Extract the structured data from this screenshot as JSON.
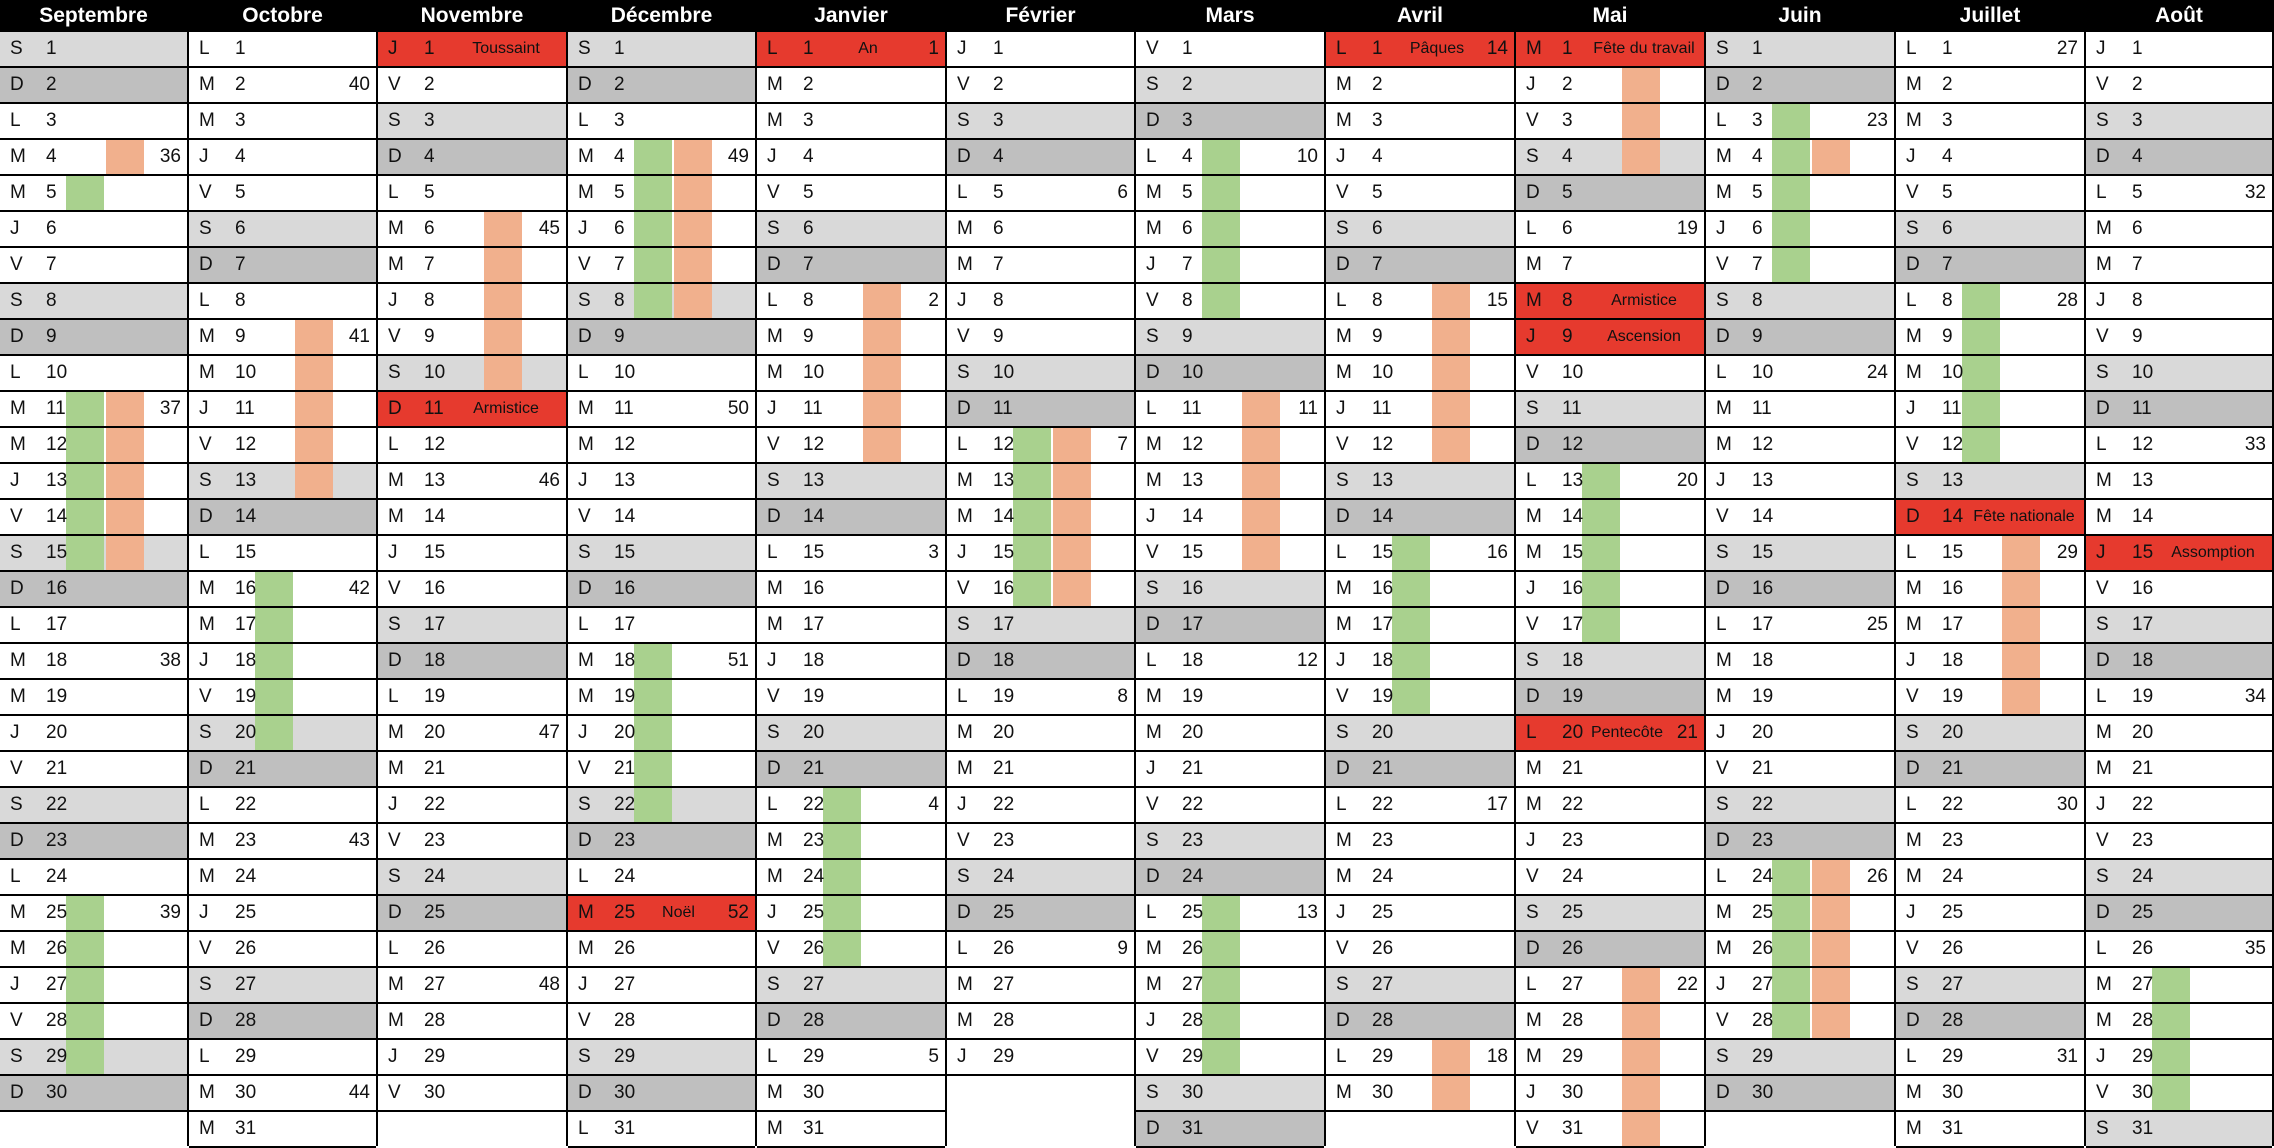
{
  "colors": {
    "header_bg": "#000000",
    "header_text": "#ffffff",
    "saturday": "#d9d9d9",
    "sunday": "#bfbfbf",
    "holiday": "#e63a2e",
    "bar_green": "#a9d18e",
    "bar_orange": "#f1b08d"
  },
  "months": [
    {
      "name": "Septembre",
      "start": 5,
      "length": 30,
      "weeks": {
        "4": 36,
        "11": 37,
        "18": 38,
        "25": 39
      },
      "holidays": [],
      "green": [
        5,
        11,
        12,
        13,
        14,
        15,
        25,
        26,
        27,
        28,
        29
      ],
      "orange": [
        4,
        11,
        12,
        13,
        14,
        15
      ]
    },
    {
      "name": "Octobre",
      "start": 0,
      "length": 31,
      "weeks": {
        "2": 40,
        "9": 41,
        "16": 42,
        "23": 43,
        "30": 44
      },
      "holidays": [],
      "green": [
        16,
        17,
        18,
        19,
        20
      ],
      "orange": [
        9,
        10,
        11,
        12,
        13
      ]
    },
    {
      "name": "Novembre",
      "start": 3,
      "length": 30,
      "weeks": {
        "6": 45,
        "13": 46,
        "20": 47,
        "27": 48
      },
      "holidays": [
        {
          "day": 1,
          "label": "Toussaint"
        },
        {
          "day": 11,
          "label": "Armistice"
        }
      ],
      "green": [],
      "orange": [
        6,
        7,
        8,
        9,
        10
      ]
    },
    {
      "name": "Décembre",
      "start": 5,
      "length": 31,
      "weeks": {
        "4": 49,
        "11": 50,
        "18": 51,
        "25": 52
      },
      "holidays": [
        {
          "day": 25,
          "label": "Noël"
        }
      ],
      "green": [
        4,
        5,
        6,
        7,
        8,
        18,
        19,
        20,
        21,
        22
      ],
      "orange": [
        4,
        5,
        6,
        7,
        8
      ]
    },
    {
      "name": "Janvier",
      "start": 0,
      "length": 31,
      "weeks": {
        "1": 1,
        "8": 2,
        "15": 3,
        "22": 4,
        "29": 5
      },
      "holidays": [
        {
          "day": 1,
          "label": "An"
        }
      ],
      "green": [
        22,
        23,
        24,
        25,
        26
      ],
      "orange": [
        8,
        9,
        10,
        11,
        12
      ]
    },
    {
      "name": "Février",
      "start": 3,
      "length": 29,
      "weeks": {
        "5": 6,
        "12": 7,
        "19": 8,
        "26": 9
      },
      "holidays": [],
      "green": [
        12,
        13,
        14,
        15,
        16
      ],
      "orange": [
        12,
        13,
        14,
        15,
        16
      ]
    },
    {
      "name": "Mars",
      "start": 4,
      "length": 31,
      "weeks": {
        "4": 10,
        "11": 11,
        "18": 12,
        "25": 13
      },
      "holidays": [],
      "green": [
        4,
        5,
        6,
        7,
        8,
        25,
        26,
        27,
        28,
        29
      ],
      "orange": [
        11,
        12,
        13,
        14,
        15
      ]
    },
    {
      "name": "Avril",
      "start": 0,
      "length": 30,
      "weeks": {
        "1": 14,
        "8": 15,
        "15": 16,
        "22": 17,
        "29": 18
      },
      "holidays": [
        {
          "day": 1,
          "label": "Pâques"
        }
      ],
      "green": [
        15,
        16,
        17,
        18,
        19
      ],
      "orange": [
        8,
        9,
        10,
        11,
        12,
        29,
        30
      ]
    },
    {
      "name": "Mai",
      "start": 2,
      "length": 31,
      "weeks": {
        "6": 19,
        "13": 20,
        "20": 21,
        "27": 22
      },
      "holidays": [
        {
          "day": 1,
          "label": "Fête du travail"
        },
        {
          "day": 8,
          "label": "Armistice"
        },
        {
          "day": 9,
          "label": "Ascension"
        },
        {
          "day": 20,
          "label": "Pentecôte"
        }
      ],
      "green": [
        13,
        14,
        15,
        16,
        17
      ],
      "orange": [
        2,
        3,
        4,
        27,
        28,
        29,
        30,
        31
      ]
    },
    {
      "name": "Juin",
      "start": 5,
      "length": 30,
      "weeks": {
        "3": 23,
        "10": 24,
        "17": 25,
        "24": 26
      },
      "holidays": [],
      "green": [
        3,
        4,
        5,
        6,
        7,
        24,
        25,
        26,
        27,
        28
      ],
      "orange": [
        4,
        24,
        25,
        26,
        27,
        28
      ]
    },
    {
      "name": "Juillet",
      "start": 0,
      "length": 31,
      "weeks": {
        "1": 27,
        "8": 28,
        "15": 29,
        "22": 30,
        "29": 31
      },
      "holidays": [
        {
          "day": 14,
          "label": "Fête nationale"
        }
      ],
      "green": [
        8,
        9,
        10,
        11,
        12
      ],
      "orange": [
        15,
        16,
        17,
        18,
        19
      ]
    },
    {
      "name": "Août",
      "start": 3,
      "length": 31,
      "weeks": {
        "5": 32,
        "12": 33,
        "19": 34,
        "26": 35
      },
      "holidays": [
        {
          "day": 15,
          "label": "Assomption"
        }
      ],
      "green": [
        27,
        28,
        29,
        30
      ],
      "orange": []
    }
  ],
  "dow_letters": [
    "L",
    "M",
    "M",
    "J",
    "V",
    "S",
    "D"
  ]
}
